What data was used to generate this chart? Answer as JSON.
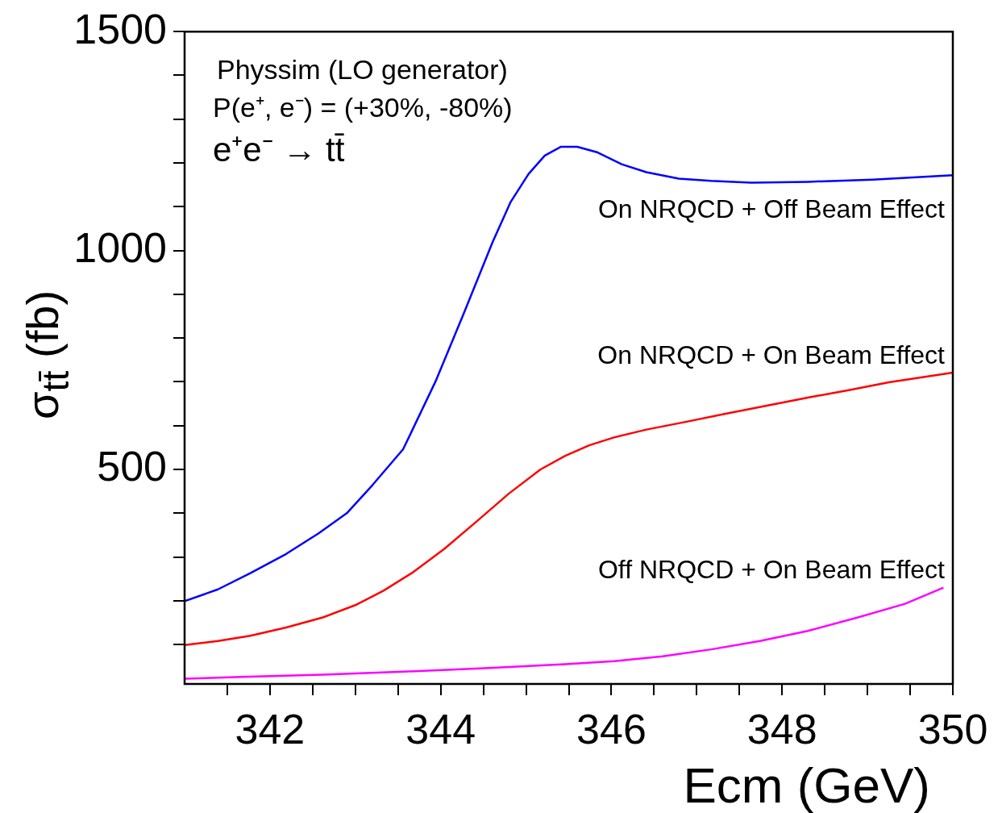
{
  "chart_data": {
    "type": "line",
    "xlabel": "Ecm (GeV)",
    "ylabel": "σ$_{tt̄}$ (fb)",
    "annotations": [
      "Physsim (LO generator)",
      "P(e⁺, e⁻) = (+30%, -80%)",
      "e⁺e⁻ → tt̄"
    ],
    "xlim": [
      341,
      350
    ],
    "ylim": [
      10,
      1500
    ],
    "xticks": [
      {
        "value": 341.5,
        "label": null
      },
      342,
      {
        "value": 342.5,
        "label": null
      },
      {
        "value": 343,
        "label": null
      },
      {
        "value": 343.5,
        "label": null
      },
      344,
      {
        "value": 344.5,
        "label": null
      },
      {
        "value": 345,
        "label": null
      },
      {
        "value": 345.5,
        "label": null
      },
      346,
      {
        "value": 346.5,
        "label": null
      },
      {
        "value": 347,
        "label": null
      },
      {
        "value": 347.5,
        "label": null
      },
      348,
      {
        "value": 348.5,
        "label": null
      },
      {
        "value": 349,
        "label": null
      },
      {
        "value": 349.5,
        "label": null
      },
      350
    ],
    "yticks": [
      {
        "value": 100,
        "label": null
      },
      {
        "value": 200,
        "label": null
      },
      {
        "value": 300,
        "label": null
      },
      {
        "value": 400,
        "label": null
      },
      500,
      {
        "value": 600,
        "label": null
      },
      {
        "value": 700,
        "label": null
      },
      {
        "value": 800,
        "label": null
      },
      {
        "value": 900,
        "label": null
      },
      1000,
      {
        "value": 1100,
        "label": null
      },
      {
        "value": 1200,
        "label": null
      },
      {
        "value": 1300,
        "label": null
      },
      {
        "value": 1400,
        "label": null
      },
      1500
    ],
    "grid": false,
    "legend": false,
    "marker": "none",
    "line_style": "solid",
    "series": [
      {
        "name": "On NRQCD + Off Beam Effect",
        "color": "#0000ff",
        "x": [
          341,
          341.39,
          341.77,
          342.19,
          342.57,
          342.9,
          343.2,
          343.56,
          343.94,
          344.27,
          344.61,
          344.82,
          345.03,
          345.22,
          345.41,
          345.6,
          345.84,
          346.12,
          346.41,
          346.79,
          347.17,
          347.64,
          348.3,
          349.06,
          350
        ],
        "values": [
          199,
          226,
          263,
          307,
          354,
          400,
          464,
          546,
          701,
          856,
          1020,
          1111,
          1175,
          1217,
          1237,
          1237,
          1224,
          1197,
          1179,
          1164,
          1159,
          1155,
          1157,
          1162,
          1172
        ]
      },
      {
        "name": "On NRQCD + On Beam Effect",
        "color": "#ff0000",
        "x": [
          341,
          341.39,
          341.77,
          342.19,
          342.62,
          343,
          343.33,
          343.66,
          344.04,
          344.42,
          344.8,
          345.17,
          345.46,
          345.74,
          346.03,
          346.41,
          346.88,
          347.36,
          347.83,
          348.3,
          348.78,
          349.25,
          350
        ],
        "values": [
          99,
          108,
          120,
          139,
          162,
          190,
          223,
          263,
          318,
          381,
          445,
          500,
          531,
          555,
          573,
          591,
          609,
          628,
          646,
          664,
          681,
          699,
          721
        ]
      },
      {
        "name": "Off NRQCD + On Beam Effect",
        "color": "#ff00ff",
        "x": [
          341,
          341.67,
          342.62,
          343.56,
          344.51,
          345.46,
          346.03,
          346.6,
          347.17,
          347.74,
          348.3,
          348.87,
          349.44,
          349.89
        ],
        "values": [
          22,
          26,
          31,
          38,
          46,
          55,
          62,
          73,
          89,
          108,
          131,
          161,
          193,
          230
        ]
      }
    ]
  }
}
